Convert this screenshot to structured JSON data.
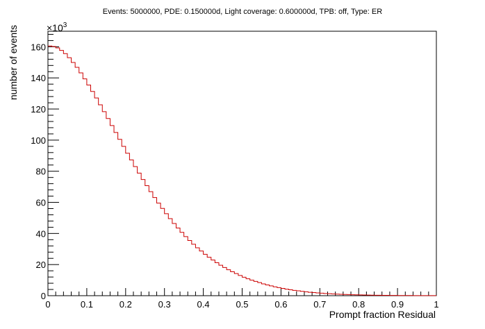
{
  "chart_data": {
    "type": "bar",
    "style": "step-histogram",
    "title": "Events: 5000000, PDE: 0.150000d, Light coverage: 0.600000d, TPB: off, Type: ER",
    "xlabel": "Prompt fraction Residual",
    "ylabel": "number of events",
    "y_multiplier_label": "×10",
    "y_multiplier_exponent": "3",
    "xlim": [
      0,
      1
    ],
    "ylim": [
      0,
      170
    ],
    "x_ticks": [
      "0",
      "0.1",
      "0.2",
      "0.3",
      "0.4",
      "0.5",
      "0.6",
      "0.7",
      "0.8",
      "0.9",
      "1"
    ],
    "y_ticks": [
      "0",
      "20",
      "40",
      "60",
      "80",
      "100",
      "120",
      "140",
      "160"
    ],
    "bin_width": 0.01,
    "line_color": "#cc0000",
    "grid": false,
    "values": [
      160.5,
      160.2,
      159.3,
      157.7,
      155.6,
      153.0,
      149.9,
      146.8,
      143.2,
      139.4,
      135.4,
      131.3,
      127.1,
      122.7,
      118.3,
      113.9,
      109.4,
      104.9,
      100.5,
      96.0,
      91.6,
      87.3,
      83.0,
      78.8,
      74.7,
      70.7,
      66.9,
      63.1,
      59.5,
      56.1,
      52.7,
      49.5,
      46.4,
      43.5,
      40.7,
      38.0,
      35.5,
      33.1,
      30.8,
      28.7,
      26.6,
      24.7,
      22.9,
      21.2,
      19.6,
      18.1,
      16.7,
      15.4,
      14.2,
      13.0,
      11.9,
      10.9,
      10.0,
      9.2,
      8.4,
      7.6,
      6.9,
      6.3,
      5.7,
      5.2,
      4.7,
      4.2,
      3.8,
      3.4,
      3.1,
      2.8,
      2.5,
      2.2,
      2.0,
      1.8,
      1.6,
      1.4,
      1.3,
      1.1,
      1.0,
      0.9,
      0.8,
      0.7,
      0.6,
      0.55,
      0.5,
      0.45,
      0.4,
      0.35,
      0.3,
      0.27,
      0.24,
      0.21,
      0.18,
      0.16,
      0.14,
      0.12,
      0.1,
      0.09,
      0.08,
      0.07,
      0.06,
      0.05,
      0.04,
      0.04
    ]
  }
}
